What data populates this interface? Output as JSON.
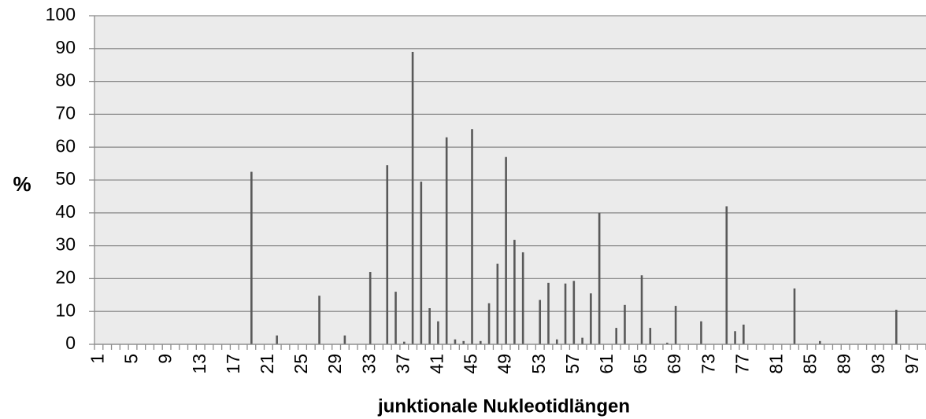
{
  "chart_data": {
    "type": "bar",
    "x_label": "junktionale Nukleotidlängen",
    "y_label": "%",
    "categories": [
      "1",
      null,
      null,
      null,
      "5",
      null,
      null,
      null,
      "9",
      null,
      null,
      null,
      "13",
      null,
      null,
      null,
      "17",
      null,
      null,
      null,
      "21",
      null,
      null,
      null,
      "25",
      null,
      null,
      null,
      "29",
      null,
      null,
      null,
      "33",
      null,
      null,
      null,
      "37",
      null,
      null,
      null,
      "41",
      null,
      null,
      null,
      "45",
      null,
      null,
      null,
      "49",
      null,
      null,
      null,
      "53",
      null,
      null,
      null,
      "57",
      null,
      null,
      null,
      "61",
      null,
      null,
      null,
      "65",
      null,
      null,
      null,
      "69",
      null,
      null,
      null,
      "73",
      null,
      null,
      null,
      "77",
      null,
      null,
      null,
      "81",
      null,
      null,
      null,
      "85",
      null,
      null,
      null,
      "89",
      null,
      null,
      null,
      "93",
      null,
      null,
      null,
      "97",
      null
    ],
    "values": [
      0,
      0,
      0,
      0,
      0,
      0,
      0,
      0,
      0,
      0,
      0,
      0,
      0,
      0,
      0,
      0,
      0,
      0,
      52.5,
      0,
      0,
      2.7,
      0,
      0,
      0,
      0,
      14.8,
      0,
      0,
      2.7,
      0,
      0,
      22,
      0,
      54.5,
      16,
      0.8,
      89,
      49.5,
      11,
      7,
      63,
      1.5,
      1,
      65.5,
      1,
      12.5,
      24.5,
      57,
      31.8,
      28,
      0,
      13.5,
      18.7,
      1.5,
      18.5,
      19.3,
      2,
      15.5,
      40,
      0,
      5,
      12,
      0,
      21,
      5,
      0,
      0.5,
      11.7,
      0,
      0,
      7,
      0,
      0,
      42,
      4,
      6,
      0,
      0,
      0,
      0,
      0,
      17,
      0,
      0,
      1,
      0,
      0,
      0,
      0,
      0,
      0,
      0,
      0,
      10.5,
      0,
      0,
      0
    ],
    "color": "#595959",
    "ylim": [
      0,
      100
    ],
    "yticks": [
      0,
      10,
      20,
      30,
      40,
      50,
      60,
      70,
      80,
      90,
      100
    ],
    "grid": true
  }
}
